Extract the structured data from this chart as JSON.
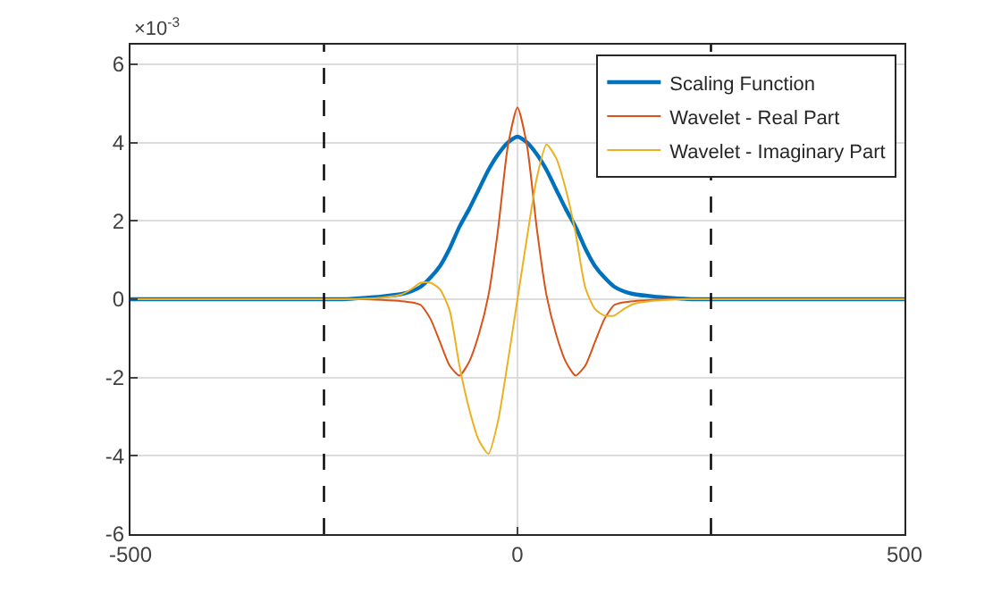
{
  "chart_data": {
    "type": "line",
    "x": [
      -500,
      -400,
      -300,
      -250,
      -225,
      -200,
      -175,
      -150,
      -137.5,
      -125,
      -112.5,
      -100,
      -87.5,
      -75,
      -62.5,
      -50,
      -37.5,
      -25,
      -12.5,
      0,
      12.5,
      25,
      37.5,
      50,
      62.5,
      75,
      87.5,
      100,
      112.5,
      125,
      137.5,
      150,
      175,
      200,
      225,
      250,
      300,
      400,
      500
    ],
    "series": [
      {
        "name": "Scaling Function",
        "color": "#0072bd",
        "values": [
          0,
          0,
          0,
          0,
          0,
          0.03,
          0.07,
          0.13,
          0.2,
          0.32,
          0.55,
          0.85,
          1.3,
          1.85,
          2.3,
          2.8,
          3.3,
          3.7,
          4,
          4.15,
          4,
          3.7,
          3.3,
          2.8,
          2.3,
          1.85,
          1.3,
          0.85,
          0.55,
          0.32,
          0.2,
          0.13,
          0.07,
          0.03,
          0,
          0,
          0,
          0,
          0
        ]
      },
      {
        "name": "Wavelet - Real Part",
        "color": "#d95319",
        "values": [
          null,
          null,
          null,
          null,
          0,
          0,
          -0.02,
          -0.05,
          -0.08,
          -0.15,
          -0.5,
          -1.1,
          -1.7,
          -1.95,
          -1.6,
          -0.9,
          0.1,
          1.8,
          3.9,
          4.9,
          3.9,
          1.8,
          0.1,
          -0.9,
          -1.6,
          -1.95,
          -1.7,
          -1.1,
          -0.5,
          -0.15,
          -0.08,
          -0.05,
          -0.02,
          0,
          0,
          null,
          null,
          null,
          null
        ]
      },
      {
        "name": "Wavelet - Imaginary Part",
        "color": "#edb120",
        "values": [
          0,
          0,
          0,
          0,
          0,
          0.01,
          0.04,
          0.12,
          0.25,
          0.42,
          0.42,
          0.25,
          -0.3,
          -1.7,
          -2.8,
          -3.6,
          -3.95,
          -3.1,
          -1.6,
          0,
          1.6,
          3.1,
          3.95,
          3.6,
          2.8,
          1.7,
          0.3,
          -0.25,
          -0.42,
          -0.42,
          -0.25,
          -0.12,
          -0.04,
          -0.01,
          0,
          0,
          0,
          0,
          0
        ]
      }
    ],
    "xlim": [
      -500,
      500
    ],
    "xticks": [
      -500,
      0,
      500
    ],
    "ylim": [
      -6,
      6.5
    ],
    "yticks": [
      -6,
      -4,
      -2,
      0,
      2,
      4,
      6
    ],
    "annotations": [
      "×10$^{-3}$"
    ],
    "ref_lines": [
      {
        "axis": "x",
        "value": -250,
        "color": "#000000",
        "line_style": "dashed"
      },
      {
        "axis": "x",
        "value": 250,
        "color": "#000000",
        "line_style": "dashed"
      }
    ],
    "grid": true,
    "legend": "top right",
    "line_style": "solid",
    "marker": "none"
  }
}
